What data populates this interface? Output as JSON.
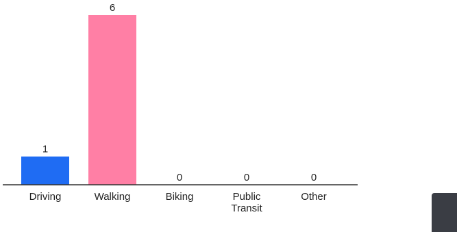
{
  "chart_data": {
    "type": "bar",
    "categories": [
      "Driving",
      "Walking",
      "Biking",
      "Public Transit",
      "Other"
    ],
    "tick_lines": [
      [
        "Driving"
      ],
      [
        "Walking"
      ],
      [
        "Biking"
      ],
      [
        "Public",
        "Transit"
      ],
      [
        "Other"
      ]
    ],
    "values": [
      1,
      6,
      0,
      0,
      0
    ],
    "value_labels": [
      "1",
      "6",
      "0",
      "0",
      "0"
    ],
    "colors": [
      "#1f6cf3",
      "#ff7fa5",
      "#1f6cf3",
      "#1f6cf3",
      "#1f6cf3"
    ],
    "ylim": [
      0,
      6
    ],
    "title": "",
    "xlabel": "",
    "ylabel": "",
    "grid": false,
    "legend": "none"
  },
  "colors": {
    "axis": "#333333",
    "widget": "#3a3d44"
  }
}
